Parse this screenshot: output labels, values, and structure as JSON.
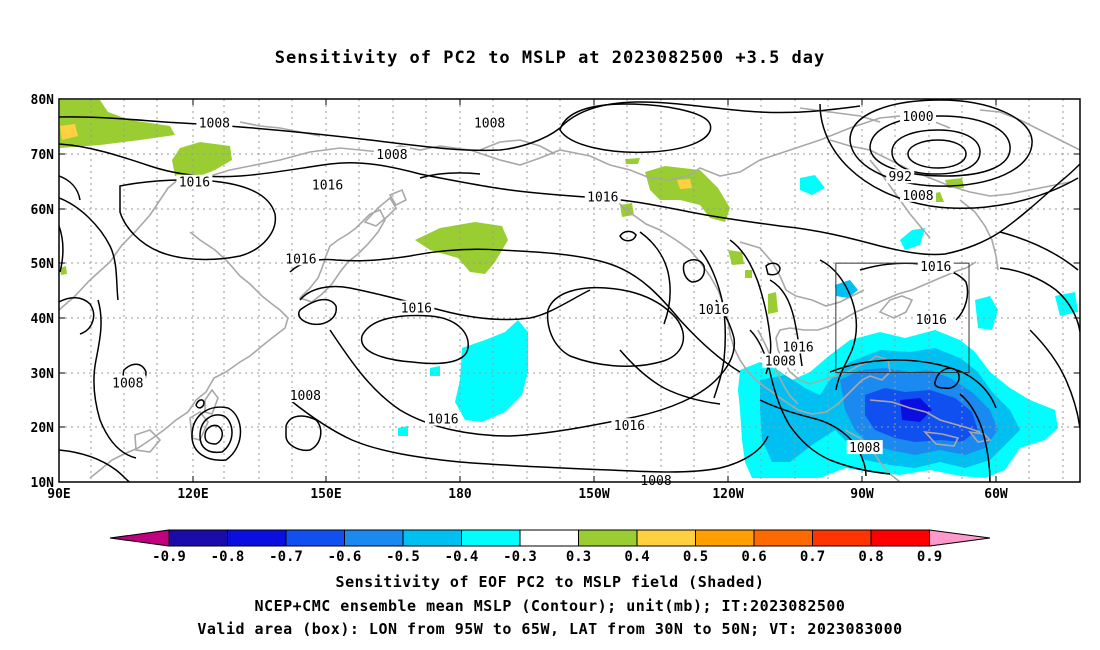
{
  "title": "Sensitivity of PC2 to MSLP at 2023082500 +3.5 day",
  "lat_labels": [
    "80N",
    "70N",
    "60N",
    "50N",
    "40N",
    "30N",
    "20N",
    "10N"
  ],
  "lon_labels": [
    "90E",
    "120E",
    "150E",
    "180",
    "150W",
    "120W",
    "90W",
    "60W"
  ],
  "colorbar": {
    "colors": [
      "#c0007f",
      "#1a0ca8",
      "#0a0fe0",
      "#1050f0",
      "#1a8af0",
      "#00c0f2",
      "#00fefe",
      "#ffffff",
      "#9acd32",
      "#ffd040",
      "#ff9f00",
      "#ff6a00",
      "#ff3400",
      "#ff0000",
      "#ff99cc"
    ],
    "labels": [
      "-0.9",
      "-0.8",
      "-0.7",
      "-0.6",
      "-0.5",
      "-0.4",
      "-0.3",
      "0.3",
      "0.4",
      "0.5",
      "0.6",
      "0.7",
      "0.8",
      "0.9"
    ]
  },
  "contour_labels": [
    {
      "text": "1008",
      "lon": 125,
      "lat": 75.5
    },
    {
      "text": "1008",
      "lon": 187,
      "lat": 75.5
    },
    {
      "text": "1008",
      "lon": 165,
      "lat": 69.8
    },
    {
      "text": "1016",
      "lon": 120.5,
      "lat": 64.7
    },
    {
      "text": "1016",
      "lon": 150.5,
      "lat": 64.2
    },
    {
      "text": "1016",
      "lon": 144.5,
      "lat": 50.7
    },
    {
      "text": "1016",
      "lon": 170.5,
      "lat": 41.7
    },
    {
      "text": "1016",
      "lon": 212.5,
      "lat": 62.0
    },
    {
      "text": "1016",
      "lon": 237.5,
      "lat": 41.4
    },
    {
      "text": "1016",
      "lon": 256.5,
      "lat": 34.6
    },
    {
      "text": "1016",
      "lon": 287.5,
      "lat": 49.3
    },
    {
      "text": "1016",
      "lon": 286.5,
      "lat": 39.6
    },
    {
      "text": "1016",
      "lon": 176.5,
      "lat": 21.4
    },
    {
      "text": "1016",
      "lon": 218.5,
      "lat": 20.2
    },
    {
      "text": "1008",
      "lon": 105.5,
      "lat": 28.0
    },
    {
      "text": "1008",
      "lon": 145.5,
      "lat": 25.7
    },
    {
      "text": "1008",
      "lon": 252.5,
      "lat": 32.0
    },
    {
      "text": "1008",
      "lon": 224.5,
      "lat": 10.2
    },
    {
      "text": "1008",
      "lon": 271.5,
      "lat": 16.2
    },
    {
      "text": "1008",
      "lon": 283.5,
      "lat": 62.3
    },
    {
      "text": "1000",
      "lon": 283.5,
      "lat": 76.7
    },
    {
      "text": "992",
      "lon": 279.5,
      "lat": 65.7
    }
  ],
  "box": {
    "lon_min": 265,
    "lon_max": 295,
    "lat_min": 30,
    "lat_max": 50
  },
  "captions": [
    "Sensitivity of EOF PC2 to MSLP field (Shaded)",
    "NCEP+CMC ensemble mean MSLP (Contour); unit(mb); IT:2023082500",
    "Valid area (box): LON from 95W to 65W, LAT from 30N to 50N; VT: 2023083000"
  ]
}
